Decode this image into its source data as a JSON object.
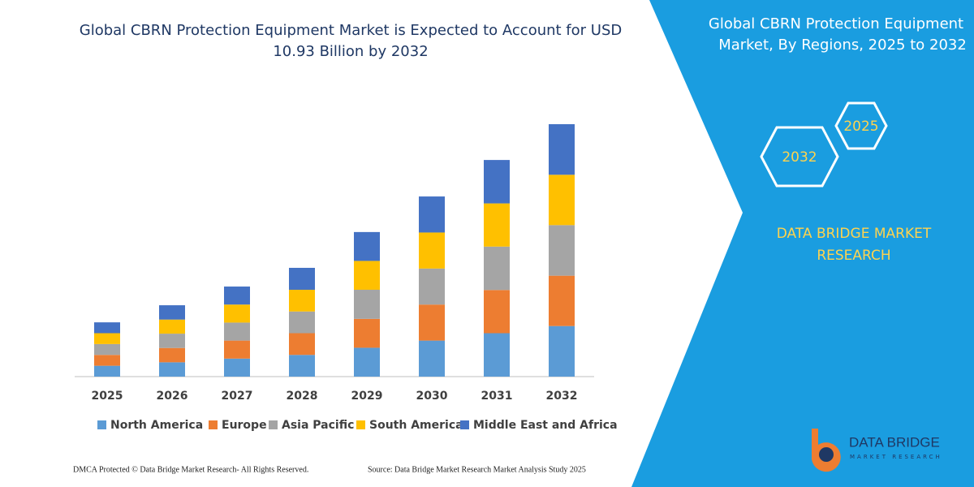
{
  "chart_data": {
    "type": "bar",
    "stacked": true,
    "title": [
      "Global CBRN Protection Equipment Market is Expected to Account for USD",
      "10.93 Billion by 2032"
    ],
    "categories": [
      "2025",
      "2026",
      "2027",
      "2028",
      "2029",
      "2030",
      "2031",
      "2032"
    ],
    "series": [
      {
        "name": "North America",
        "color": "#5b9bd5",
        "values": [
          0.47,
          0.62,
          0.78,
          0.94,
          1.25,
          1.56,
          1.88,
          2.19
        ]
      },
      {
        "name": "Europe",
        "color": "#ed7d31",
        "values": [
          0.47,
          0.62,
          0.78,
          0.94,
          1.25,
          1.56,
          1.87,
          2.18
        ]
      },
      {
        "name": "Asia Pacific",
        "color": "#a5a5a5",
        "values": [
          0.47,
          0.62,
          0.78,
          0.94,
          1.26,
          1.56,
          1.88,
          2.19
        ]
      },
      {
        "name": "South America",
        "color": "#ffc000",
        "values": [
          0.47,
          0.61,
          0.78,
          0.94,
          1.25,
          1.56,
          1.87,
          2.18
        ]
      },
      {
        "name": "Middle East and Africa",
        "color": "#4472c4",
        "values": [
          0.47,
          0.62,
          0.78,
          0.95,
          1.25,
          1.56,
          1.88,
          2.19
        ]
      }
    ]
  },
  "panel": {
    "title": [
      "Global CBRN Protection Equipment",
      "Market, By Regions, 2025 to 2032"
    ],
    "hexagons": [
      "2025",
      "2032"
    ],
    "brand": [
      "DATA BRIDGE MARKET",
      "RESEARCH"
    ]
  },
  "logo": {
    "name": "DATA BRIDGE",
    "tagline": "MARKET RESEARCH"
  },
  "footer": {
    "left": "DMCA Protected © Data Bridge Market Research-  All Rights Reserved.",
    "right": "Source: Data Bridge Market Research  Market Analysis Study 2025"
  }
}
